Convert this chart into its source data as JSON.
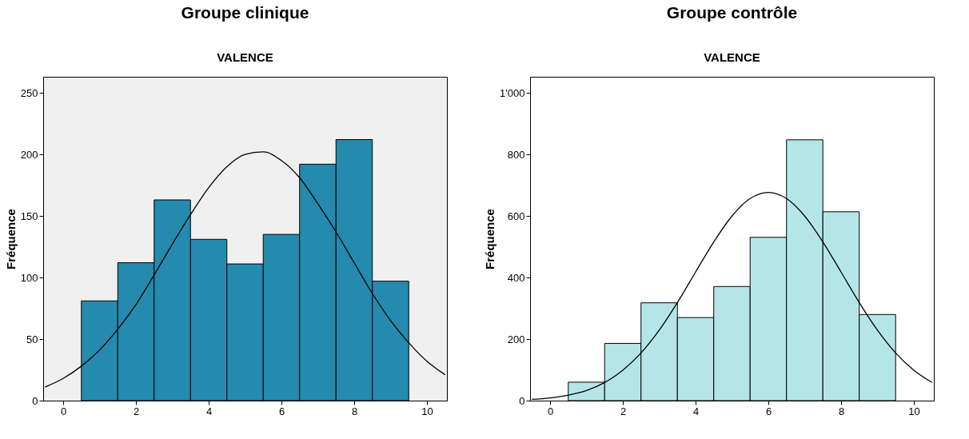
{
  "chart_data": [
    {
      "type": "histogram",
      "title": "Groupe clinique",
      "subtitle": "VALENCE",
      "ylabel": "Fréquence",
      "bins": [
        0.5,
        1.5,
        2.5,
        3.5,
        4.5,
        5.5,
        6.5,
        7.5,
        8.5,
        9.5
      ],
      "values": [
        81,
        112,
        163,
        131,
        111,
        135,
        192,
        212,
        97
      ],
      "color": "#248aae",
      "series": [
        {
          "type": "line",
          "color": "#000000",
          "x": [
            -0.5,
            0,
            0.5,
            1,
            1.5,
            2,
            2.5,
            3,
            3.5,
            4,
            4.5,
            5,
            5.5,
            6,
            6.5,
            7,
            7.5,
            8,
            8.5,
            9,
            9.5,
            10,
            10.5
          ],
          "values": [
            11,
            18,
            28,
            41,
            58,
            78,
            102,
            127,
            151,
            173,
            190,
            200,
            202,
            195,
            181,
            160,
            137,
            112,
            87,
            65,
            47,
            32,
            21
          ]
        }
      ],
      "xlim": [
        -0.55,
        10.55
      ],
      "xticks": [
        0,
        2,
        4,
        6,
        8,
        10
      ],
      "ylim": [
        0,
        263
      ],
      "yticks": [
        0,
        50,
        100,
        150,
        200,
        250
      ],
      "grid": false
    },
    {
      "type": "histogram",
      "title": "Groupe contrôle",
      "subtitle": "VALENCE",
      "ylabel": "Fréquence",
      "bins": [
        0.5,
        1.5,
        2.5,
        3.5,
        4.5,
        5.5,
        6.5,
        7.5,
        8.5,
        9.5
      ],
      "values": [
        60,
        186,
        318,
        270,
        371,
        531,
        848,
        614,
        280
      ],
      "color": "#b5e6e7",
      "series": [
        {
          "type": "line",
          "color": "#000000",
          "x": [
            -0.5,
            0,
            0.5,
            1,
            1.5,
            2,
            2.5,
            3,
            3.5,
            4,
            4.5,
            5,
            5.5,
            6,
            6.5,
            7,
            7.5,
            8,
            8.5,
            9,
            9.5,
            10,
            10.5
          ],
          "values": [
            4,
            9,
            18,
            33,
            59,
            99,
            155,
            229,
            319,
            418,
            516,
            600,
            657,
            677,
            657,
            600,
            516,
            418,
            319,
            229,
            155,
            99,
            59
          ]
        }
      ],
      "xlim": [
        -0.55,
        10.55
      ],
      "xticks": [
        0,
        2,
        4,
        6,
        8,
        10
      ],
      "ylim": [
        0,
        1053
      ],
      "yticks": [
        0,
        200,
        400,
        600,
        800,
        {
          "value": 1000,
          "label": "1'000"
        }
      ],
      "grid": false
    }
  ]
}
